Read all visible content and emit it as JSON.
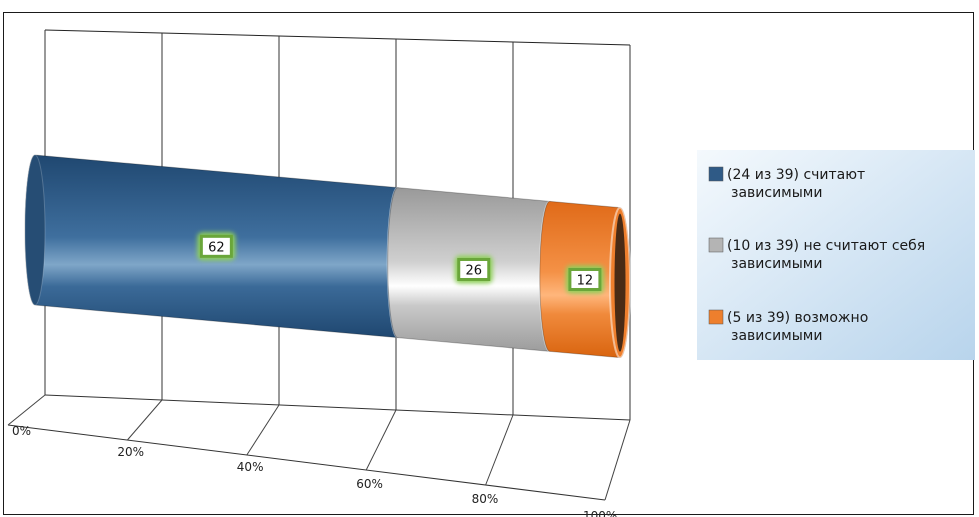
{
  "chart_data": {
    "type": "bar",
    "orientation": "horizontal",
    "stacked": "100%",
    "shape": "cylinder",
    "categories": [
      ""
    ],
    "series": [
      {
        "name": "(24 из 39) считают зависимыми",
        "legend_lines": [
          "(24 из 39) считают",
          "зависимыми"
        ],
        "values": [
          62
        ],
        "label": "62",
        "color": "#2f5a86"
      },
      {
        "name": "(10 из 39) не считают себя зависимыми",
        "legend_lines": [
          "(10 из 39) не считают себя",
          "зависимыми"
        ],
        "values": [
          26
        ],
        "label": "26",
        "color": "#b4b4b4"
      },
      {
        "name": "(5 из 39) возможно зависимыми",
        "legend_lines": [
          "(5 из 39) возможно",
          "зависимыми"
        ],
        "values": [
          12
        ],
        "label": "12",
        "color": "#ee7f2d"
      }
    ],
    "xlim": [
      0,
      100
    ],
    "xticks": [
      "0%",
      "20%",
      "40%",
      "60%",
      "80%",
      "100%"
    ],
    "grid": true,
    "legend": "right",
    "data_label_style": {
      "border_color": "#6aa63a",
      "glow_color": "#8fd05a"
    },
    "legend_background": "#d4e6f5"
  }
}
